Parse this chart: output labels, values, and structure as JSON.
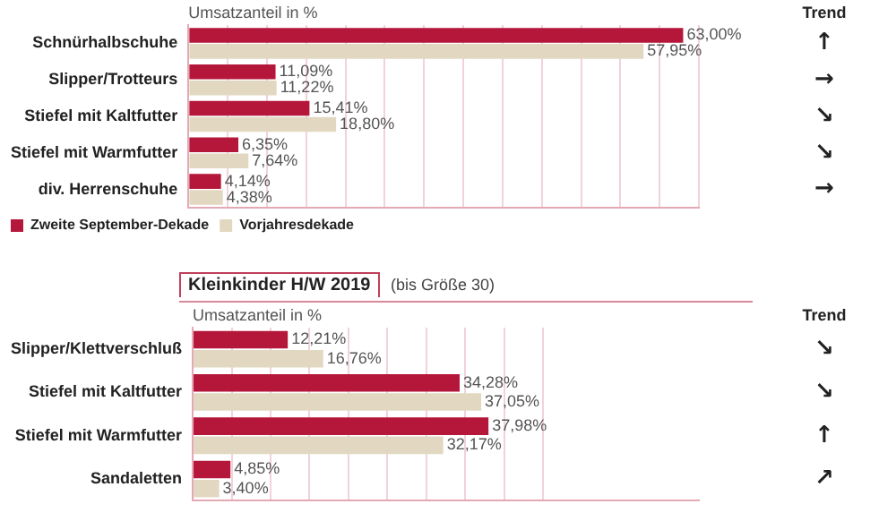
{
  "chart_data": [
    {
      "type": "bar",
      "orientation": "horizontal",
      "xlabel": "Umsatzanteil in %",
      "categories": [
        "Schnürhalbschuhe",
        "Slipper/Trotteurs",
        "Stiefel mit Kaltfutter",
        "Stiefel mit Warmfutter",
        "div. Herrenschuhe"
      ],
      "series": [
        {
          "name": "Zweite September-Dekade",
          "color": "#b5173a",
          "values": [
            63.0,
            11.09,
            15.41,
            6.35,
            4.14
          ],
          "value_labels": [
            "63,00%",
            "11,09%",
            "15,41%",
            "6,35%",
            "4,14%"
          ]
        },
        {
          "name": "Vorjahresdekade",
          "color": "#e2d8c2",
          "values": [
            57.95,
            11.22,
            18.8,
            7.64,
            4.38
          ],
          "value_labels": [
            "57,95%",
            "11,22%",
            "18,80%",
            "7,64%",
            "4,38%"
          ]
        }
      ],
      "xlim": [
        0,
        65
      ],
      "xticks": [
        {
          "value": 0,
          "label": null
        },
        {
          "value": 5,
          "label": null
        },
        {
          "value": 10,
          "label": null
        },
        {
          "value": 15,
          "label": null
        },
        {
          "value": 20,
          "label": null
        },
        {
          "value": 25,
          "label": null
        },
        {
          "value": 30,
          "label": null
        },
        {
          "value": 35,
          "label": null
        },
        {
          "value": 40,
          "label": null
        },
        {
          "value": 45,
          "label": null
        },
        {
          "value": 50,
          "label": null
        },
        {
          "value": 55,
          "label": null
        },
        {
          "value": 60,
          "label": null
        },
        {
          "value": 65,
          "label": null
        }
      ],
      "grid": "x",
      "tick_labels": "y",
      "legend": "bottom",
      "annotations": [
        "Trend",
        "↑",
        "→",
        "↘",
        "↘",
        "→"
      ]
    },
    {
      "type": "bar",
      "orientation": "horizontal",
      "title": "Kleinkinder H/W 2019",
      "subtitle": "(bis Größe 30)",
      "xlabel": "Umsatzanteil in %",
      "categories": [
        "Slipper/Klettverschluß",
        "Stiefel mit Kaltfutter",
        "Stiefel mit Warmfutter",
        "Sandaletten"
      ],
      "series": [
        {
          "color": "#b5173a",
          "values": [
            12.21,
            34.28,
            37.98,
            4.85
          ],
          "value_labels": [
            "12,21%",
            "34,28%",
            "37,98%",
            "4,85%"
          ]
        },
        {
          "color": "#e2d8c2",
          "values": [
            16.76,
            37.05,
            32.17,
            3.4
          ],
          "value_labels": [
            "16,76%",
            "37,05%",
            "32,17%",
            "3,40%"
          ]
        }
      ],
      "xlim": [
        0,
        65
      ],
      "xticks": [
        {
          "value": 0,
          "label": null
        },
        {
          "value": 5,
          "label": null
        },
        {
          "value": 10,
          "label": null
        },
        {
          "value": 15,
          "label": null
        },
        {
          "value": 20,
          "label": null
        },
        {
          "value": 25,
          "label": null
        },
        {
          "value": 30,
          "label": null
        },
        {
          "value": 35,
          "label": null
        },
        {
          "value": 40,
          "label": null
        },
        {
          "value": 45,
          "label": null
        }
      ],
      "grid": "x",
      "tick_labels": "y",
      "annotations": [
        "Trend",
        "↘",
        "↘",
        "↑",
        "↗"
      ]
    }
  ]
}
